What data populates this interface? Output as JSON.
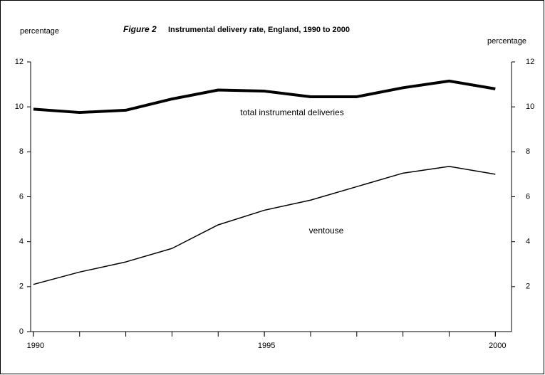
{
  "chart_data": {
    "type": "line",
    "title_label": "Figure 2",
    "title": "Instrumental delivery rate, England, 1990 to 2000",
    "y_label": "percentage",
    "y2_label": "percentage",
    "x": [
      1990,
      1991,
      1992,
      1993,
      1994,
      1995,
      1996,
      1997,
      1998,
      1999,
      2000
    ],
    "series": [
      {
        "name": "total instrumental deliveries",
        "color": "#000000",
        "values": [
          9.9,
          9.75,
          9.85,
          10.35,
          10.75,
          10.7,
          10.45,
          10.45,
          10.85,
          11.15,
          10.8
        ]
      },
      {
        "name": "ventouse",
        "color": "#000000",
        "values": [
          2.1,
          2.65,
          3.1,
          3.7,
          4.75,
          5.4,
          5.85,
          6.45,
          7.05,
          7.35,
          7.0
        ]
      }
    ],
    "xlim": [
      1989.94,
      2000.35
    ],
    "xticks": [
      1990,
      1995,
      2000
    ],
    "ylim": [
      0,
      12
    ],
    "yticks": [
      0,
      2,
      4,
      6,
      8,
      10,
      12
    ],
    "y2lim": [
      0,
      12
    ],
    "y2ticks": [
      2,
      4,
      6,
      8,
      10,
      12
    ],
    "grid": false
  }
}
